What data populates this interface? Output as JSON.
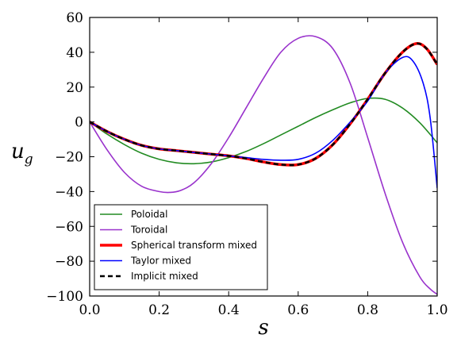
{
  "chart_data": {
    "type": "line",
    "xlabel": "s",
    "ylabel_main": "u",
    "ylabel_sub": "g",
    "xlim": [
      0.0,
      1.0
    ],
    "ylim": [
      -100,
      60
    ],
    "xticks": [
      0.0,
      0.2,
      0.4,
      0.6,
      0.8,
      1.0
    ],
    "xtick_labels": [
      "0.0",
      "0.2",
      "0.4",
      "0.6",
      "0.8",
      "1.0"
    ],
    "yticks": [
      -100,
      -80,
      -60,
      -40,
      -20,
      0,
      20,
      40,
      60
    ],
    "ytick_labels": [
      "−100",
      "−80",
      "−60",
      "−40",
      "−20",
      "0",
      "20",
      "40",
      "60"
    ],
    "grid": false,
    "legend_position": "lower-left",
    "series": [
      {
        "name": "Poloidal",
        "color": "#228B22",
        "style": "solid",
        "x": [
          0.0,
          0.05,
          0.1,
          0.15,
          0.2,
          0.25,
          0.3,
          0.35,
          0.4,
          0.45,
          0.5,
          0.55,
          0.6,
          0.65,
          0.7,
          0.75,
          0.8,
          0.85,
          0.9,
          0.95,
          1.0
        ],
        "y": [
          0,
          -7,
          -13,
          -18,
          -21.5,
          -23.5,
          -24,
          -23,
          -20.5,
          -17,
          -12.5,
          -7.5,
          -2.5,
          2.5,
          7,
          11,
          13.5,
          13,
          8,
          -0.5,
          -12
        ]
      },
      {
        "name": "Toroidal",
        "color": "#9932CC",
        "style": "solid",
        "x": [
          0.0,
          0.05,
          0.1,
          0.15,
          0.2,
          0.23,
          0.26,
          0.3,
          0.35,
          0.4,
          0.45,
          0.5,
          0.55,
          0.6,
          0.65,
          0.7,
          0.75,
          0.8,
          0.85,
          0.9,
          0.95,
          0.98,
          1.0
        ],
        "y": [
          0,
          -16,
          -29,
          -37,
          -40,
          -40.5,
          -39.5,
          -35,
          -24,
          -9,
          8,
          25,
          40,
          48,
          49,
          42,
          22,
          -9,
          -41,
          -69,
          -89,
          -96,
          -99
        ]
      },
      {
        "name": "Spherical transform mixed",
        "color": "#FF0000",
        "style": "thick",
        "x": [
          0.0,
          0.05,
          0.1,
          0.15,
          0.2,
          0.25,
          0.3,
          0.35,
          0.4,
          0.45,
          0.5,
          0.55,
          0.6,
          0.65,
          0.7,
          0.75,
          0.8,
          0.85,
          0.9,
          0.94,
          0.97,
          1.0
        ],
        "y": [
          0,
          -5.5,
          -10,
          -13.5,
          -15.5,
          -16.5,
          -17.5,
          -18.5,
          -19.5,
          -21,
          -23,
          -24.5,
          -24.5,
          -21,
          -13,
          -1,
          13,
          28,
          40,
          45,
          42,
          33
        ]
      },
      {
        "name": "Taylor mixed",
        "color": "#0000FF",
        "style": "solid",
        "x": [
          0.0,
          0.05,
          0.1,
          0.15,
          0.2,
          0.25,
          0.3,
          0.35,
          0.4,
          0.45,
          0.5,
          0.55,
          0.6,
          0.65,
          0.7,
          0.75,
          0.8,
          0.85,
          0.9,
          0.93,
          0.96,
          0.98,
          1.0
        ],
        "y": [
          0,
          -5.5,
          -10,
          -13.5,
          -15.5,
          -16.5,
          -17.5,
          -18.5,
          -19.5,
          -20.5,
          -21.5,
          -22,
          -21.5,
          -18,
          -10.5,
          0,
          12,
          28,
          37,
          35,
          22,
          2,
          -38
        ]
      },
      {
        "name": "Implicit mixed",
        "color": "#000000",
        "style": "dashed",
        "x": [
          0.0,
          0.05,
          0.1,
          0.15,
          0.2,
          0.25,
          0.3,
          0.35,
          0.4,
          0.45,
          0.5,
          0.55,
          0.6,
          0.65,
          0.7,
          0.75,
          0.8,
          0.85,
          0.9,
          0.94,
          0.97,
          1.0
        ],
        "y": [
          0,
          -5.5,
          -10,
          -13.5,
          -15.5,
          -16.5,
          -17.5,
          -18.5,
          -19.5,
          -21,
          -23,
          -24.5,
          -24.5,
          -21,
          -13,
          -1,
          13,
          28,
          40,
          45,
          42,
          33
        ]
      }
    ]
  }
}
